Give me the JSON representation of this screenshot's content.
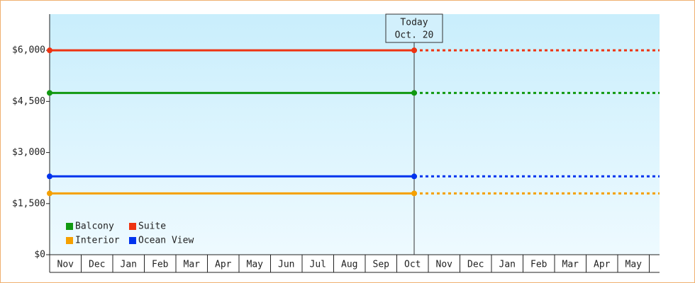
{
  "chart_data": {
    "type": "line",
    "categories": [
      "Nov",
      "Dec",
      "Jan",
      "Feb",
      "Mar",
      "Apr",
      "May",
      "Jun",
      "Jul",
      "Aug",
      "Sep",
      "Oct",
      "Nov",
      "Dec",
      "Jan",
      "Feb",
      "Mar",
      "Apr",
      "May"
    ],
    "series": [
      {
        "name": "Suite",
        "color": "#ee3311",
        "values": [
          6000,
          6000,
          6000,
          6000,
          6000,
          6000,
          6000,
          6000,
          6000,
          6000,
          6000,
          6000,
          6000,
          6000,
          6000,
          6000,
          6000,
          6000,
          6000
        ]
      },
      {
        "name": "Balcony",
        "color": "#119911",
        "values": [
          4750,
          4750,
          4750,
          4750,
          4750,
          4750,
          4750,
          4750,
          4750,
          4750,
          4750,
          4750,
          4750,
          4750,
          4750,
          4750,
          4750,
          4750,
          4750
        ]
      },
      {
        "name": "Ocean View",
        "color": "#0033ee",
        "values": [
          2300,
          2300,
          2300,
          2300,
          2300,
          2300,
          2300,
          2300,
          2300,
          2300,
          2300,
          2300,
          2300,
          2300,
          2300,
          2300,
          2300,
          2300,
          2300
        ]
      },
      {
        "name": "Interior",
        "color": "#f5a000",
        "values": [
          1800,
          1800,
          1800,
          1800,
          1800,
          1800,
          1800,
          1800,
          1800,
          1800,
          1800,
          1800,
          1800,
          1800,
          1800,
          1800,
          1800,
          1800,
          1800
        ]
      }
    ],
    "annotation": {
      "title": "Today",
      "date": "Oct. 20",
      "index": 11
    },
    "ylim": [
      0,
      7000
    ],
    "yticks": [
      {
        "value": 0,
        "label": "$0"
      },
      {
        "value": 1500,
        "label": "$1,500"
      },
      {
        "value": 3000,
        "label": "$3,000"
      },
      {
        "value": 4500,
        "label": "$4,500"
      },
      {
        "value": 6000,
        "label": "$6,000"
      }
    ]
  }
}
